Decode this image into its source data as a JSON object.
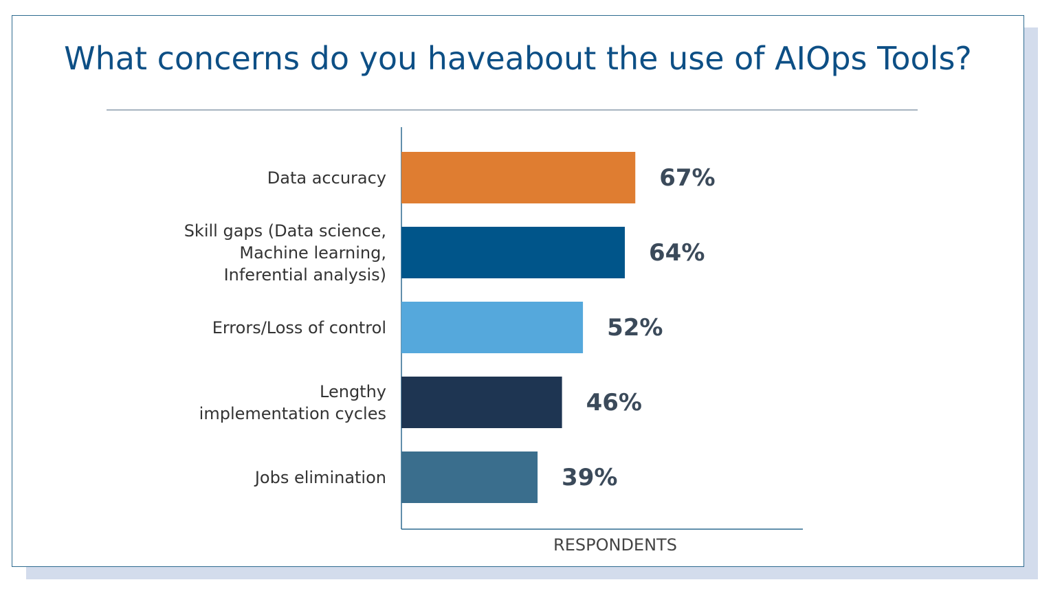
{
  "chart_data": {
    "type": "bar",
    "orientation": "horizontal",
    "title": "What concerns do you haveabout the use of AIOps Tools?",
    "xlabel": "RESPONDENTS",
    "categories": [
      "Data accuracy",
      "Skill gaps (Data science,\nMachine learning,\nInferential analysis)",
      "Errors/Loss of control",
      "Lengthy\nimplementation cycles",
      "Jobs elimination"
    ],
    "values": [
      67,
      64,
      52,
      46,
      39
    ],
    "value_labels": [
      "67%",
      "64%",
      "52%",
      "46%",
      "39%"
    ],
    "colors": [
      "#df7d31",
      "#00558a",
      "#55a8dc",
      "#1e3552",
      "#3a6e8d"
    ],
    "xlim": [
      0,
      115
    ]
  }
}
